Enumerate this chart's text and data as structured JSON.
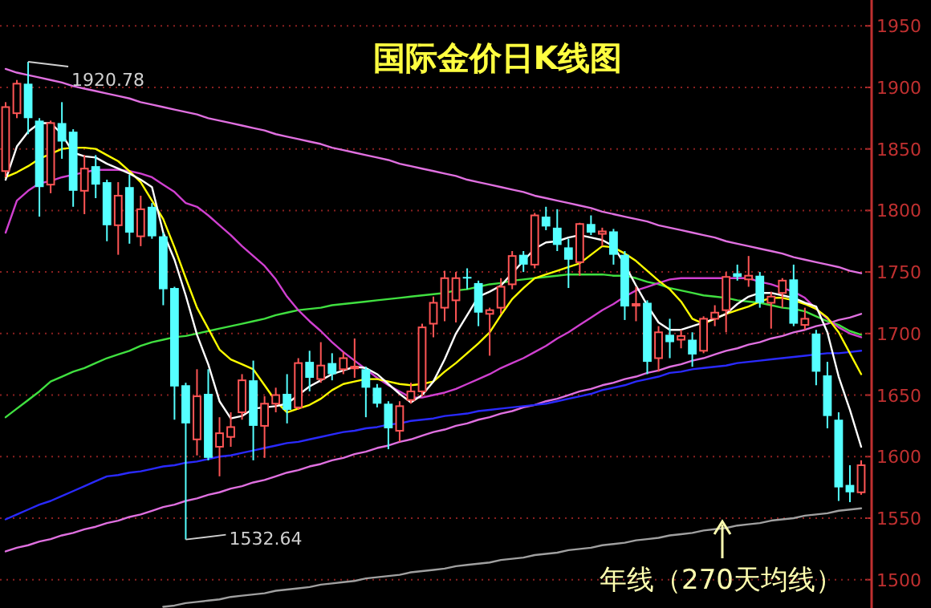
{
  "chart_data": {
    "type": "candlestick",
    "title": "国际金价日K线图",
    "categories": [
      null,
      null,
      null,
      null,
      null,
      null,
      null,
      null,
      null,
      null,
      null,
      null,
      null,
      null,
      null,
      null,
      null,
      null,
      null,
      null,
      null,
      null,
      null,
      null,
      null,
      null,
      null,
      null,
      null,
      null,
      null,
      null,
      null,
      null,
      null,
      null,
      null,
      null,
      null,
      null,
      null,
      null,
      null,
      null,
      null,
      null,
      null,
      null,
      null,
      null,
      null,
      null,
      null,
      null,
      null,
      null,
      null,
      null,
      null,
      null,
      null,
      null,
      null,
      null,
      null,
      null,
      null,
      null,
      null,
      null,
      null,
      null,
      null,
      null,
      null,
      null,
      null
    ],
    "ohlc": [
      [
        1832,
        1888,
        1827,
        1884
      ],
      [
        1879,
        1906,
        1875,
        1903
      ],
      [
        1903,
        1920.78,
        1862,
        1875
      ],
      [
        1873,
        1875,
        1795,
        1819
      ],
      [
        1821,
        1873,
        1814,
        1871
      ],
      [
        1871,
        1888,
        1842,
        1856
      ],
      [
        1864,
        1866,
        1803,
        1816
      ],
      [
        1816,
        1845,
        1797,
        1834
      ],
      [
        1836,
        1845,
        1810,
        1821
      ],
      [
        1823,
        1825,
        1775,
        1788
      ],
      [
        1788,
        1823,
        1764,
        1812
      ],
      [
        1819,
        1829,
        1773,
        1782
      ],
      [
        1779,
        1812,
        1771,
        1801
      ],
      [
        1803,
        1806,
        1777,
        1779
      ],
      [
        1779,
        1782,
        1723,
        1736
      ],
      [
        1737,
        1738,
        1630,
        1657
      ],
      [
        1658,
        1660,
        1532.64,
        1627
      ],
      [
        1614,
        1671,
        1601,
        1649
      ],
      [
        1651,
        1671,
        1597,
        1599
      ],
      [
        1608,
        1632,
        1584,
        1619
      ],
      [
        1616,
        1636,
        1608,
        1624
      ],
      [
        1636,
        1667,
        1630,
        1662
      ],
      [
        1662,
        1678,
        1597,
        1625
      ],
      [
        1625,
        1649,
        1599,
        1643
      ],
      [
        1643,
        1656,
        1636,
        1650
      ],
      [
        1651,
        1667,
        1627,
        1638
      ],
      [
        1640,
        1680,
        1638,
        1676
      ],
      [
        1677,
        1686,
        1653,
        1664
      ],
      [
        1663,
        1693,
        1660,
        1674
      ],
      [
        1676,
        1684,
        1662,
        1667
      ],
      [
        1671,
        1685,
        1667,
        1680
      ],
      [
        1672,
        1696,
        1664,
        1673
      ],
      [
        1671,
        1673,
        1632,
        1656
      ],
      [
        1656,
        1659,
        1640,
        1643
      ],
      [
        1643,
        1645,
        1606,
        1623
      ],
      [
        1621,
        1645,
        1612,
        1641
      ],
      [
        1646,
        1660,
        1643,
        1653
      ],
      [
        1653,
        1708,
        1649,
        1705
      ],
      [
        1708,
        1730,
        1697,
        1725
      ],
      [
        1721,
        1751,
        1710,
        1745
      ],
      [
        1727,
        1750,
        1709,
        1745
      ],
      [
        1746,
        1753,
        1736,
        1745
      ],
      [
        1741,
        1743,
        1706,
        1717
      ],
      [
        1716,
        1721,
        1682,
        1719
      ],
      [
        1721,
        1745,
        1716,
        1738
      ],
      [
        1740,
        1767,
        1736,
        1763
      ],
      [
        1764,
        1767,
        1750,
        1756
      ],
      [
        1756,
        1798,
        1753,
        1796
      ],
      [
        1795,
        1803,
        1784,
        1787
      ],
      [
        1786,
        1801,
        1767,
        1772
      ],
      [
        1770,
        1777,
        1737,
        1760
      ],
      [
        1758,
        1790,
        1747,
        1789
      ],
      [
        1789,
        1796,
        1780,
        1782
      ],
      [
        1781,
        1786,
        1771,
        1783
      ],
      [
        1783,
        1785,
        1756,
        1764
      ],
      [
        1764,
        1767,
        1711,
        1722
      ],
      [
        1723,
        1738,
        1710,
        1724
      ],
      [
        1725,
        1727,
        1667,
        1677
      ],
      [
        1680,
        1706,
        1669,
        1701
      ],
      [
        1699,
        1712,
        1680,
        1693
      ],
      [
        1695,
        1703,
        1688,
        1698
      ],
      [
        1695,
        1701,
        1673,
        1683
      ],
      [
        1686,
        1714,
        1684,
        1712
      ],
      [
        1712,
        1723,
        1706,
        1717
      ],
      [
        1719,
        1750,
        1701,
        1746
      ],
      [
        1749,
        1756,
        1743,
        1746
      ],
      [
        1744,
        1763,
        1738,
        1747
      ],
      [
        1747,
        1750,
        1721,
        1725
      ],
      [
        1725,
        1734,
        1704,
        1730
      ],
      [
        1733,
        1745,
        1721,
        1743
      ],
      [
        1744,
        1756,
        1706,
        1708
      ],
      [
        1707,
        1721,
        1703,
        1712
      ],
      [
        1700,
        1703,
        1658,
        1669
      ],
      [
        1666,
        1677,
        1623,
        1633
      ],
      [
        1630,
        1636,
        1564,
        1575
      ],
      [
        1577,
        1593,
        1563,
        1571
      ],
      [
        1571,
        1597,
        1569,
        1593
      ]
    ],
    "colors": [
      "#ff5555",
      "#ff5555",
      "#55ffff",
      "#55ffff",
      "#ff5555",
      "#55ffff",
      "#55ffff",
      "#ff5555",
      "#55ffff",
      "#55ffff",
      "#ff5555",
      "#55ffff",
      "#ff5555",
      "#55ffff",
      "#55ffff",
      "#55ffff",
      "#55ffff",
      "#ff5555",
      "#55ffff",
      "#ff5555",
      "#ff5555",
      "#ff5555",
      "#55ffff",
      "#ff5555",
      "#ff5555",
      "#55ffff",
      "#ff5555",
      "#55ffff",
      "#ff5555",
      "#55ffff",
      "#ff5555",
      "#ff5555",
      "#55ffff",
      "#55ffff",
      "#55ffff",
      "#ff5555",
      "#ff5555",
      "#ff5555",
      "#ff5555",
      "#ff5555",
      "#ff5555",
      "#55ffff",
      "#55ffff",
      "#ff5555",
      "#ff5555",
      "#ff5555",
      "#55ffff",
      "#ff5555",
      "#55ffff",
      "#55ffff",
      "#55ffff",
      "#ff5555",
      "#55ffff",
      "#ff5555",
      "#55ffff",
      "#55ffff",
      "#ff5555",
      "#55ffff",
      "#ff5555",
      "#55ffff",
      "#ff5555",
      "#55ffff",
      "#ff5555",
      "#ff5555",
      "#ff5555",
      "#55ffff",
      "#ff5555",
      "#55ffff",
      "#ff5555",
      "#ff5555",
      "#55ffff",
      "#ff5555",
      "#55ffff",
      "#55ffff",
      "#55ffff",
      "#55ffff",
      "#ff5555"
    ],
    "series": [
      {
        "type": "line",
        "color": "#e070e0",
        "values": [
          1915,
          1912,
          1910,
          1908,
          1906,
          1904,
          1901,
          1899,
          1897,
          1895,
          1893,
          1891,
          1888,
          1886,
          1884,
          1882,
          1880,
          1878,
          1875,
          1873,
          1871,
          1869,
          1867,
          1865,
          1862,
          1860,
          1858,
          1856,
          1854,
          1851,
          1849,
          1847,
          1845,
          1843,
          1841,
          1838,
          1836,
          1834,
          1832,
          1830,
          1828,
          1825,
          1823,
          1821,
          1819,
          1817,
          1815,
          1812,
          1810,
          1808,
          1806,
          1804,
          1802,
          1799,
          1797,
          1795,
          1793,
          1791,
          1788,
          1786,
          1784,
          1782,
          1780,
          1778,
          1775,
          1773,
          1771,
          1769,
          1767,
          1765,
          1762,
          1760,
          1758,
          1756,
          1754,
          1751,
          1749
        ]
      },
      {
        "type": "line",
        "color": "#e070e0",
        "values": [
          1523,
          1526,
          1528,
          1531,
          1533,
          1536,
          1538,
          1541,
          1543,
          1546,
          1548,
          1551,
          1553,
          1556,
          1559,
          1561,
          1564,
          1566,
          1569,
          1571,
          1574,
          1576,
          1579,
          1581,
          1584,
          1587,
          1589,
          1592,
          1594,
          1597,
          1599,
          1602,
          1604,
          1607,
          1609,
          1612,
          1614,
          1617,
          1620,
          1622,
          1625,
          1627,
          1630,
          1632,
          1635,
          1637,
          1640,
          1642,
          1645,
          1647,
          1650,
          1653,
          1655,
          1658,
          1660,
          1663,
          1665,
          1668,
          1670,
          1673,
          1675,
          1678,
          1680,
          1683,
          1686,
          1688,
          1691,
          1693,
          1696,
          1698,
          1701,
          1703,
          1706,
          1708,
          1711,
          1713,
          1716
        ]
      },
      {
        "type": "line",
        "color": "#a0a0a0",
        "values": [
          null,
          null,
          null,
          null,
          null,
          null,
          null,
          null,
          null,
          null,
          null,
          null,
          null,
          null,
          1478,
          1479,
          1481,
          1482,
          1483,
          1484,
          1486,
          1487,
          1488,
          1489,
          1491,
          1492,
          1493,
          1494,
          1496,
          1497,
          1498,
          1499,
          1501,
          1502,
          1503,
          1504,
          1506,
          1507,
          1508,
          1509,
          1511,
          1512,
          1513,
          1514,
          1516,
          1517,
          1518,
          1520,
          1521,
          1522,
          1524,
          1525,
          1526,
          1528,
          1529,
          1530,
          1532,
          1533,
          1534,
          1536,
          1537,
          1538,
          1540,
          1541,
          1542,
          1544,
          1545,
          1546,
          1548,
          1549,
          1550,
          1552,
          1553,
          1554,
          1556,
          1557,
          1558
        ]
      },
      {
        "type": "line",
        "color": "#2a2aff",
        "values": [
          1549,
          1553,
          1557,
          1561,
          1564,
          1568,
          1572,
          1576,
          1580,
          1584,
          1585,
          1587,
          1588,
          1590,
          1592,
          1593,
          1595,
          1596,
          1598,
          1600,
          1601,
          1603,
          1605,
          1607,
          1609,
          1611,
          1612,
          1614,
          1616,
          1618,
          1620,
          1621,
          1623,
          1624,
          1626,
          1627,
          1629,
          1630,
          1631,
          1633,
          1634,
          1635,
          1637,
          1638,
          1639,
          1640,
          1641,
          1642,
          1643,
          1645,
          1647,
          1649,
          1651,
          1654,
          1656,
          1658,
          1661,
          1663,
          1665,
          1668,
          1669,
          1671,
          1672,
          1673,
          1674,
          1676,
          1677,
          1678,
          1679,
          1680,
          1681,
          1682,
          1683,
          1684,
          1684,
          1685,
          1686
        ]
      },
      {
        "type": "line",
        "color": "#40e040",
        "values": [
          1632,
          1639,
          1646,
          1653,
          1661,
          1665,
          1669,
          1672,
          1676,
          1680,
          1683,
          1686,
          1690,
          1693,
          1695,
          1697,
          1698,
          1700,
          1702,
          1704,
          1706,
          1708,
          1710,
          1712,
          1715,
          1717,
          1719,
          1720,
          1721,
          1723,
          1724,
          1725,
          1726,
          1727,
          1728,
          1729,
          1730,
          1731,
          1732,
          1733,
          1735,
          1736,
          1738,
          1740,
          1741,
          1743,
          1744,
          1745,
          1746,
          1747,
          1748,
          1748,
          1748,
          1748,
          1747,
          1747,
          1745,
          1742,
          1740,
          1737,
          1735,
          1733,
          1731,
          1730,
          1729,
          1727,
          1726,
          1725,
          1723,
          1721,
          1720,
          1718,
          1714,
          1710,
          1707,
          1702,
          1699
        ]
      },
      {
        "type": "line",
        "color": "#d040d0",
        "values": [
          1782,
          1808,
          1816,
          1822,
          1824,
          1827,
          1829,
          1831,
          1833,
          1833,
          1833,
          1832,
          1830,
          1827,
          1821,
          1815,
          1806,
          1803,
          1796,
          1788,
          1780,
          1771,
          1763,
          1755,
          1744,
          1730,
          1719,
          1710,
          1702,
          1693,
          1685,
          1678,
          1671,
          1664,
          1658,
          1653,
          1648,
          1648,
          1650,
          1652,
          1655,
          1659,
          1663,
          1667,
          1672,
          1676,
          1680,
          1685,
          1690,
          1696,
          1701,
          1707,
          1713,
          1719,
          1724,
          1730,
          1735,
          1738,
          1741,
          1744,
          1745,
          1745,
          1745,
          1745,
          1745,
          1745,
          1745,
          1742,
          1740,
          1737,
          1734,
          1729,
          1720,
          1712,
          1705,
          1700,
          1697
        ]
      },
      {
        "type": "line",
        "color": "#ffff00",
        "values": [
          1827,
          1831,
          1836,
          1842,
          1846,
          1850,
          1851,
          1851,
          1850,
          1845,
          1840,
          1832,
          1823,
          1808,
          1793,
          1770,
          1745,
          1721,
          1704,
          1687,
          1679,
          1675,
          1671,
          1658,
          1645,
          1636,
          1639,
          1642,
          1647,
          1654,
          1659,
          1661,
          1663,
          1663,
          1661,
          1659,
          1658,
          1659,
          1661,
          1669,
          1676,
          1684,
          1692,
          1701,
          1715,
          1728,
          1737,
          1745,
          1748,
          1751,
          1754,
          1757,
          1764,
          1771,
          1770,
          1765,
          1759,
          1751,
          1743,
          1736,
          1726,
          1712,
          1708,
          1712,
          1716,
          1719,
          1722,
          1726,
          1729,
          1729,
          1727,
          1724,
          1720,
          1713,
          1701,
          1684,
          1667
        ]
      },
      {
        "type": "line",
        "color": "#ffffff",
        "values": [
          1825,
          1852,
          1864,
          1871,
          1871,
          1862,
          1847,
          1844,
          1843,
          1838,
          1834,
          1830,
          1825,
          1819,
          1782,
          1760,
          1731,
          1699,
          1675,
          1645,
          1631,
          1633,
          1639,
          1640,
          1641,
          1643,
          1650,
          1657,
          1662,
          1667,
          1670,
          1673,
          1672,
          1667,
          1659,
          1651,
          1644,
          1650,
          1661,
          1679,
          1700,
          1715,
          1730,
          1734,
          1739,
          1749,
          1759,
          1769,
          1774,
          1775,
          1778,
          1780,
          1778,
          1776,
          1771,
          1756,
          1739,
          1723,
          1709,
          1703,
          1703,
          1706,
          1709,
          1712,
          1716,
          1724,
          1730,
          1733,
          1733,
          1731,
          1729,
          1725,
          1722,
          1701,
          1665,
          1638,
          1608
        ]
      }
    ],
    "ylim": [
      1477,
      1971
    ],
    "yticks": [
      1500,
      1550,
      1600,
      1650,
      1700,
      1750,
      1800,
      1850,
      1900,
      1950
    ],
    "grid": "y",
    "tick_labels": "y",
    "annotations": [
      "1920.78",
      "1532.64",
      "年线（270天均线）"
    ]
  }
}
